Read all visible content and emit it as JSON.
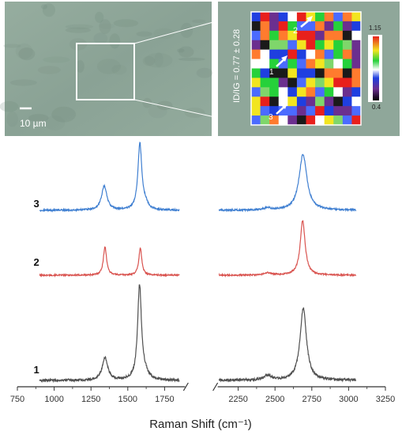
{
  "micrograph": {
    "scale_bar_label": "10 µm",
    "background_color": "#8fa79a"
  },
  "raman_map": {
    "ratio_label": "ID/IG = 0.77 ± 0.28",
    "point_labels": [
      "1",
      "2",
      "3"
    ],
    "colorbar_max": "1.15",
    "colorbar_min": "0.4"
  },
  "chart_data": {
    "type": "line",
    "xlabel": "Raman Shift (cm⁻¹)",
    "ylabel": "",
    "xlim": [
      750,
      3250
    ],
    "xticks": [
      750,
      1000,
      1250,
      1500,
      1750,
      2250,
      2500,
      2750,
      3000,
      3250
    ],
    "x_axis_break": [
      1900,
      2100
    ],
    "segments": [
      [
        900,
        1850
      ],
      [
        2120,
        3050
      ]
    ],
    "series": [
      {
        "name": "3",
        "color": "#3f7fd1",
        "peaks": [
          {
            "center": 1340,
            "height": 0.36,
            "width": 22
          },
          {
            "center": 1582,
            "height": 1.0,
            "width": 16
          },
          {
            "center": 1620,
            "height": 0.08,
            "width": 20
          },
          {
            "center": 2450,
            "height": 0.03,
            "width": 30
          },
          {
            "center": 2690,
            "height": 0.84,
            "width": 32
          }
        ]
      },
      {
        "name": "2",
        "color": "#d9534f",
        "peaks": [
          {
            "center": 1345,
            "height": 0.5,
            "width": 13
          },
          {
            "center": 1585,
            "height": 0.48,
            "width": 12
          },
          {
            "center": 2450,
            "height": 0.04,
            "width": 30
          },
          {
            "center": 2688,
            "height": 0.96,
            "width": 20
          }
        ]
      },
      {
        "name": "1",
        "color": "#505050",
        "peaks": [
          {
            "center": 1345,
            "height": 0.24,
            "width": 22
          },
          {
            "center": 1580,
            "height": 1.0,
            "width": 16
          },
          {
            "center": 1620,
            "height": 0.05,
            "width": 25
          },
          {
            "center": 2450,
            "height": 0.05,
            "width": 30
          },
          {
            "center": 2692,
            "height": 0.76,
            "width": 26
          }
        ]
      }
    ]
  }
}
